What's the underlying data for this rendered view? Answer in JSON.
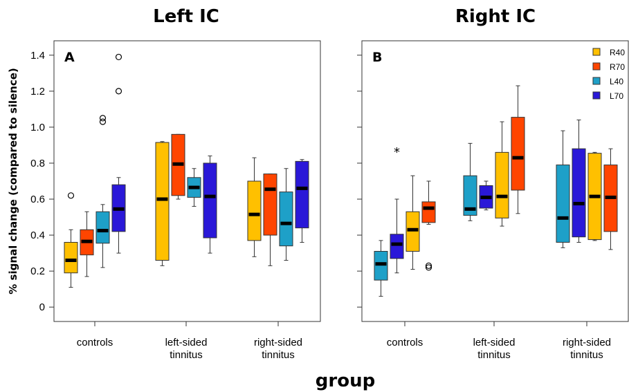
{
  "figure": {
    "xlabel": "group",
    "ylabel": "% signal change (compared to silence)"
  },
  "colors": {
    "R40": "#FFC000",
    "R70": "#FF4500",
    "L40": "#1EA0C8",
    "L70": "#2A18D8"
  },
  "chart_data": [
    {
      "type": "box",
      "title": "Left IC",
      "panel_label": "A",
      "categories": [
        "controls",
        "left-sided tinnitus",
        "right-sided tinnitus"
      ],
      "category_lines": [
        [
          "controls"
        ],
        [
          "left-sided",
          "tinnitus"
        ],
        [
          "right-sided",
          "tinnitus"
        ]
      ],
      "ylim": [
        -0.08,
        1.48
      ],
      "yticks": [
        0,
        0.2,
        0.4,
        0.6,
        0.8,
        1.0,
        1.2,
        1.4
      ],
      "ytick_labels": [
        "0",
        "0.2",
        "0.4",
        "0.6",
        "0.8",
        "1.0",
        "1.2",
        "1.4"
      ],
      "series_order": [
        "R40",
        "R70",
        "L40",
        "L70"
      ],
      "series": [
        {
          "name": "R40",
          "boxes": [
            {
              "min": 0.11,
              "q1": 0.19,
              "median": 0.26,
              "q3": 0.36,
              "max": 0.43,
              "outliers": [
                0.62
              ],
              "extremes": []
            },
            {
              "min": 0.23,
              "q1": 0.26,
              "median": 0.6,
              "q3": 0.915,
              "max": 0.92,
              "outliers": [],
              "extremes": []
            },
            {
              "min": 0.28,
              "q1": 0.37,
              "median": 0.515,
              "q3": 0.7,
              "max": 0.83,
              "outliers": [],
              "extremes": []
            }
          ]
        },
        {
          "name": "R70",
          "boxes": [
            {
              "min": 0.17,
              "q1": 0.29,
              "median": 0.365,
              "q3": 0.43,
              "max": 0.53,
              "outliers": [],
              "extremes": []
            },
            {
              "min": 0.6,
              "q1": 0.62,
              "median": 0.795,
              "q3": 0.96,
              "max": 0.96,
              "outliers": [],
              "extremes": []
            },
            {
              "min": 0.23,
              "q1": 0.4,
              "median": 0.655,
              "q3": 0.74,
              "max": 0.74,
              "outliers": [],
              "extremes": []
            }
          ]
        },
        {
          "name": "L40",
          "boxes": [
            {
              "min": 0.22,
              "q1": 0.355,
              "median": 0.425,
              "q3": 0.53,
              "max": 0.57,
              "outliers": [
                1.03,
                1.05
              ],
              "extremes": []
            },
            {
              "min": 0.56,
              "q1": 0.61,
              "median": 0.665,
              "q3": 0.72,
              "max": 0.77,
              "outliers": [],
              "extremes": []
            },
            {
              "min": 0.26,
              "q1": 0.34,
              "median": 0.465,
              "q3": 0.64,
              "max": 0.77,
              "outliers": [],
              "extremes": []
            }
          ]
        },
        {
          "name": "L70",
          "boxes": [
            {
              "min": 0.3,
              "q1": 0.42,
              "median": 0.545,
              "q3": 0.68,
              "max": 0.72,
              "outliers": [
                1.2,
                1.39
              ],
              "extremes": []
            },
            {
              "min": 0.3,
              "q1": 0.385,
              "median": 0.615,
              "q3": 0.8,
              "max": 0.84,
              "outliers": [],
              "extremes": []
            },
            {
              "min": 0.36,
              "q1": 0.44,
              "median": 0.66,
              "q3": 0.81,
              "max": 0.82,
              "outliers": [],
              "extremes": []
            }
          ]
        }
      ]
    },
    {
      "type": "box",
      "title": "Right IC",
      "panel_label": "B",
      "categories": [
        "controls",
        "left-sided tinnitus",
        "right-sided tinnitus"
      ],
      "category_lines": [
        [
          "controls"
        ],
        [
          "left-sided",
          "tinnitus"
        ],
        [
          "right-sided",
          "tinnitus"
        ]
      ],
      "ylim": [
        -0.08,
        1.48
      ],
      "legend": {
        "position": "top-right",
        "entries": [
          "R40",
          "R70",
          "L40",
          "L70"
        ]
      },
      "series_order": [
        "L40",
        "L70",
        "R40",
        "R70"
      ],
      "series": [
        {
          "name": "L40",
          "boxes": [
            {
              "min": 0.06,
              "q1": 0.15,
              "median": 0.24,
              "q3": 0.31,
              "max": 0.37,
              "outliers": [],
              "extremes": []
            },
            {
              "min": 0.48,
              "q1": 0.51,
              "median": 0.545,
              "q3": 0.73,
              "max": 0.91,
              "outliers": [],
              "extremes": []
            },
            {
              "min": 0.33,
              "q1": 0.36,
              "median": 0.495,
              "q3": 0.79,
              "max": 0.98,
              "outliers": [],
              "extremes": []
            }
          ]
        },
        {
          "name": "L70",
          "boxes": [
            {
              "min": 0.19,
              "q1": 0.27,
              "median": 0.35,
              "q3": 0.405,
              "max": 0.6,
              "outliers": [],
              "extremes": [
                0.87
              ]
            },
            {
              "min": 0.54,
              "q1": 0.55,
              "median": 0.61,
              "q3": 0.675,
              "max": 0.7,
              "outliers": [],
              "extremes": []
            },
            {
              "min": 0.36,
              "q1": 0.39,
              "median": 0.575,
              "q3": 0.88,
              "max": 1.04,
              "outliers": [],
              "extremes": []
            }
          ]
        },
        {
          "name": "R40",
          "boxes": [
            {
              "min": 0.21,
              "q1": 0.31,
              "median": 0.43,
              "q3": 0.53,
              "max": 0.73,
              "outliers": [],
              "extremes": []
            },
            {
              "min": 0.45,
              "q1": 0.495,
              "median": 0.615,
              "q3": 0.86,
              "max": 1.03,
              "outliers": [],
              "extremes": []
            },
            {
              "min": 0.37,
              "q1": 0.375,
              "median": 0.615,
              "q3": 0.855,
              "max": 0.86,
              "outliers": [],
              "extremes": []
            }
          ]
        },
        {
          "name": "R70",
          "boxes": [
            {
              "min": 0.46,
              "q1": 0.47,
              "median": 0.55,
              "q3": 0.585,
              "max": 0.7,
              "outliers": [
                0.22,
                0.23
              ],
              "extremes": []
            },
            {
              "min": 0.52,
              "q1": 0.65,
              "median": 0.83,
              "q3": 1.055,
              "max": 1.23,
              "outliers": [],
              "extremes": []
            },
            {
              "min": 0.32,
              "q1": 0.42,
              "median": 0.61,
              "q3": 0.79,
              "max": 0.88,
              "outliers": [],
              "extremes": []
            }
          ]
        }
      ]
    }
  ]
}
